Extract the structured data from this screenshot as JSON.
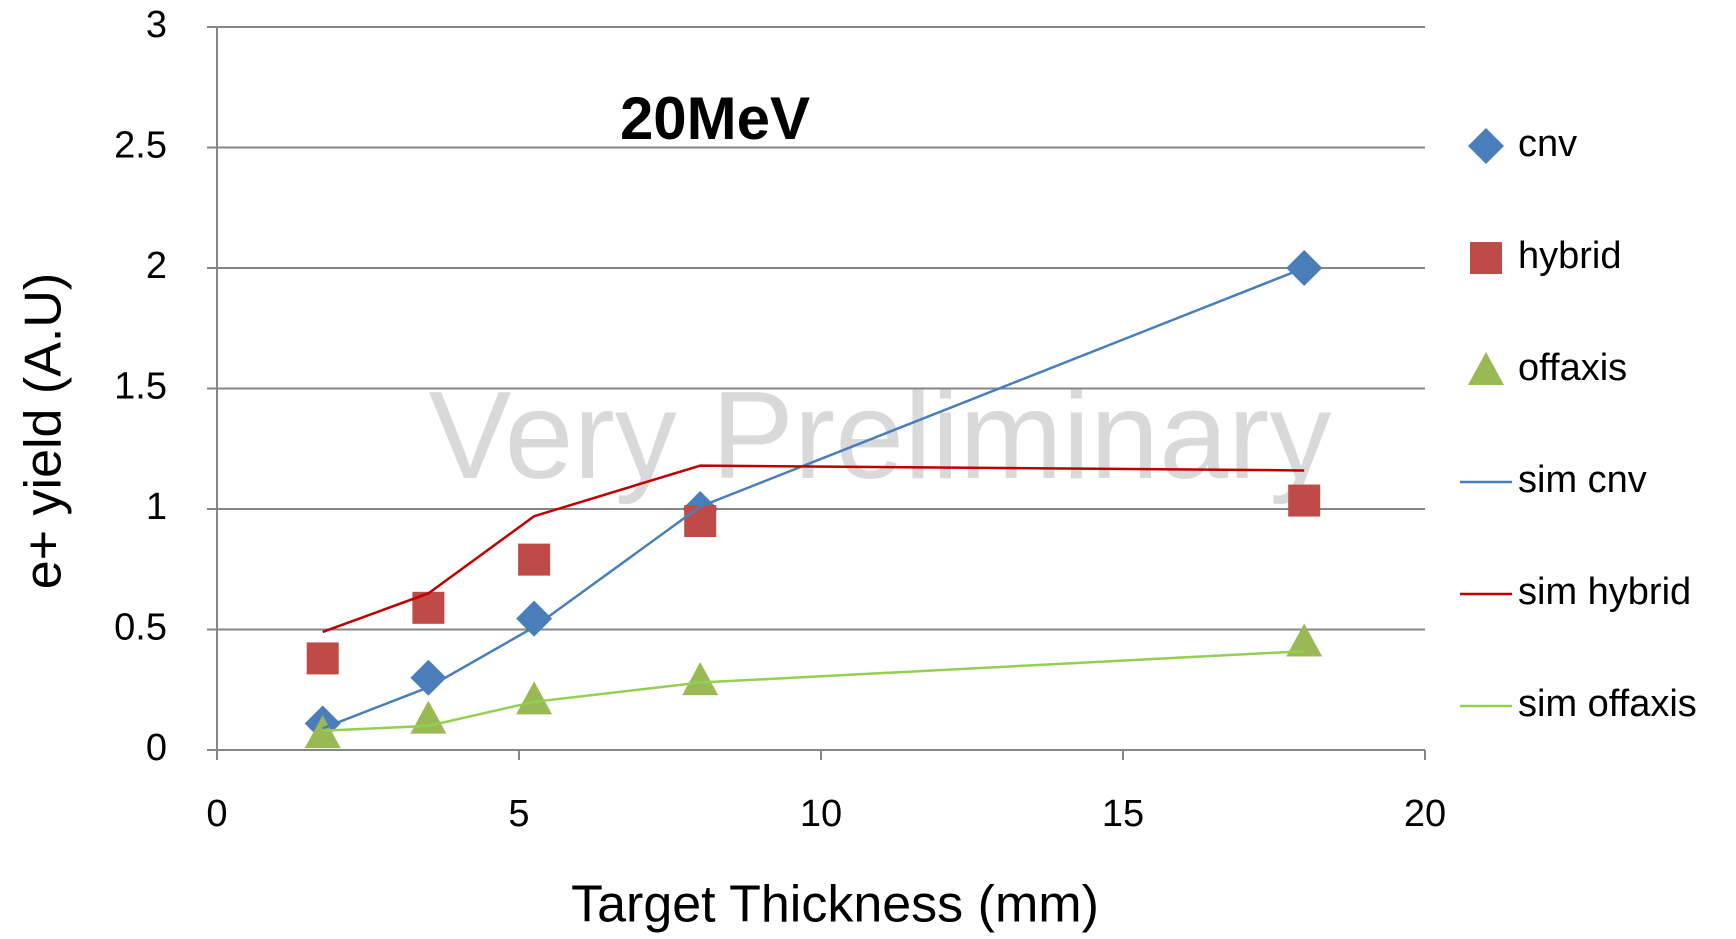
{
  "chart_data": {
    "type": "scatter",
    "title": "20MeV",
    "watermark": "Very Preliminary",
    "x_label": "Target Thickness (mm)",
    "y_label": "e+ yield (A.U)",
    "x": [
      1.75,
      3.5,
      5.25,
      8,
      18
    ],
    "series": [
      {
        "name": "cnv",
        "color": "#4a7ebb",
        "marker": "diamond",
        "values": [
          0.11,
          0.3,
          0.545,
          1.0,
          2.0
        ]
      },
      {
        "name": "hybrid",
        "color": "#be4b48",
        "marker": "square",
        "values": [
          0.38,
          0.59,
          0.79,
          0.95,
          1.035
        ]
      },
      {
        "name": "offaxis",
        "color": "#98b954",
        "marker": "triangle",
        "values": [
          0.07,
          0.13,
          0.21,
          0.29,
          0.45
        ]
      },
      {
        "name": "sim cnv",
        "color": "#4a7ebb",
        "marker": "line",
        "values": [
          0.09,
          0.26,
          0.51,
          1.01,
          2.0
        ]
      },
      {
        "name": "sim hybrid",
        "color": "#c00000",
        "marker": "line",
        "values": [
          0.49,
          0.65,
          0.97,
          1.18,
          1.16
        ]
      },
      {
        "name": "sim offaxis",
        "color": "#92d050",
        "marker": "line",
        "values": [
          0.08,
          0.1,
          0.2,
          0.28,
          0.41
        ]
      }
    ],
    "xlim": [
      0,
      20
    ],
    "xticks": [
      0,
      5,
      10,
      15,
      20
    ],
    "ylim": [
      0,
      3
    ],
    "yticks": [
      0,
      0.5,
      1,
      1.5,
      2,
      2.5,
      3
    ],
    "grid": true,
    "legend": "right"
  }
}
